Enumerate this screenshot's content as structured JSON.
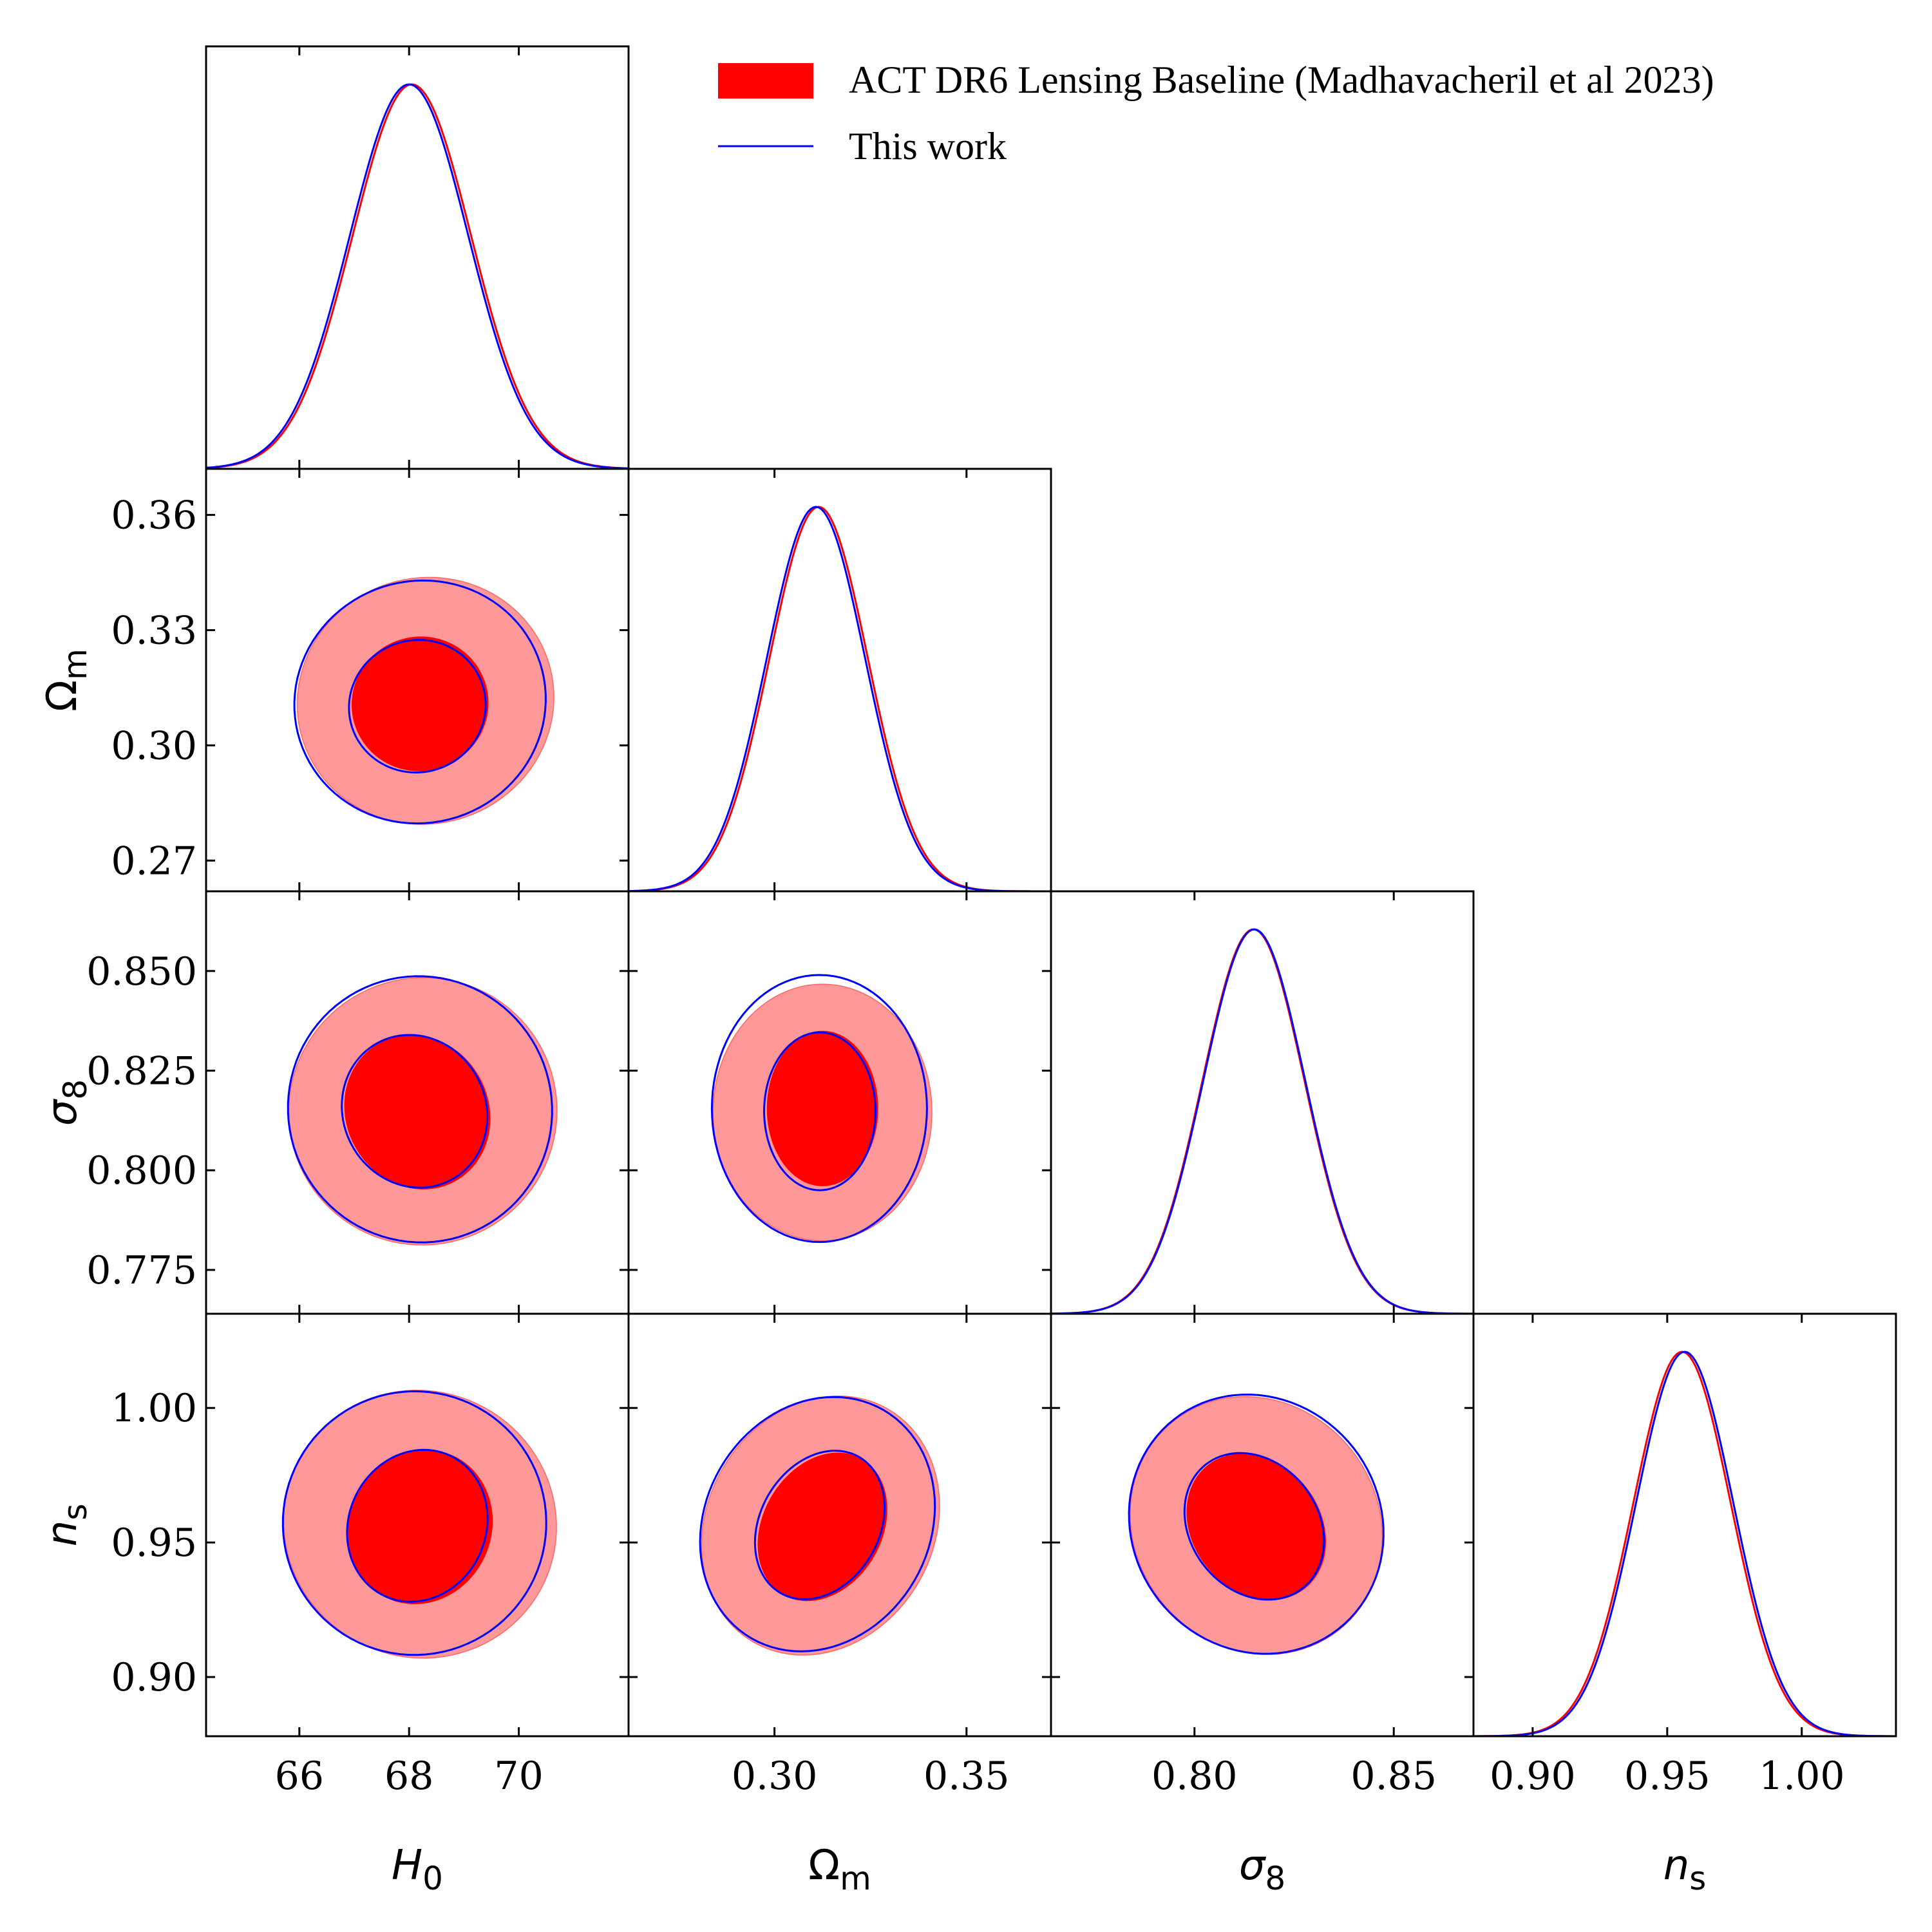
{
  "chart_data": {
    "type": "triangle-corner-plot",
    "params": [
      {
        "id": "H0",
        "label": "H",
        "sub": "0",
        "italic": true,
        "range": [
          64.3,
          72.0
        ],
        "ticks": [
          66,
          68,
          70
        ],
        "tick_labels": [
          "66",
          "68",
          "70"
        ],
        "mean": 68.0,
        "sigma": 1.08
      },
      {
        "id": "Om",
        "label": "Ω",
        "sub": "m",
        "italic": false,
        "range": [
          0.262,
          0.372
        ],
        "ticks": [
          0.27,
          0.3,
          0.33,
          0.36
        ],
        "tick_labels": [
          "0.27",
          "0.30",
          "0.33",
          "0.36"
        ],
        "tick_labels_x": [
          "0.30",
          "0.35"
        ],
        "ticks_x": [
          0.3,
          0.35
        ],
        "mean": 0.311,
        "sigma": 0.0128
      },
      {
        "id": "s8",
        "label": "σ",
        "sub": "8",
        "italic": true,
        "range": [
          0.764,
          0.87
        ],
        "ticks": [
          0.775,
          0.8,
          0.825,
          0.85
        ],
        "tick_labels": [
          "0.775",
          "0.800",
          "0.825",
          "0.850"
        ],
        "ticks_x": [
          0.8,
          0.85
        ],
        "tick_labels_x": [
          "0.80",
          "0.85"
        ],
        "mean": 0.815,
        "sigma": 0.0128
      },
      {
        "id": "ns",
        "label": "n",
        "sub": "s",
        "italic": true,
        "range": [
          0.878,
          1.035
        ],
        "ticks": [
          0.9,
          0.95,
          1.0
        ],
        "tick_labels": [
          "0.90",
          "0.95",
          "1.00"
        ],
        "mean": 0.956,
        "sigma": 0.0181
      }
    ],
    "series": [
      {
        "name": "ACT DR6 Lensing Baseline (Madhavacheril et al 2023)",
        "style": "filled",
        "color_inner": "#ff0000",
        "color_outer": "#ff9999",
        "line_color": "#ff0000",
        "peaks": [
          68.05,
          0.3115,
          0.8148,
          0.9555
        ]
      },
      {
        "name": "This work",
        "style": "line",
        "line_color": "#0000ff",
        "peaks": [
          68.0,
          0.3108,
          0.815,
          0.9565
        ]
      }
    ],
    "contours_2d": [
      {
        "pair": [
          "H0",
          "Om"
        ],
        "red_inner": {
          "cx": 68.2,
          "cy": 0.3108,
          "rx": 1.25,
          "ry": 0.0175,
          "rot": 20
        },
        "red_outer": {
          "cx": 68.3,
          "cy": 0.3116,
          "rx": 2.35,
          "ry": 0.032,
          "rot": 18
        },
        "blue_inner": {
          "cx": 68.15,
          "cy": 0.3102,
          "rx": 1.25,
          "ry": 0.0172,
          "rot": 18
        },
        "blue_outer": {
          "cx": 68.2,
          "cy": 0.3113,
          "rx": 2.3,
          "ry": 0.0315,
          "rot": 18
        }
      },
      {
        "pair": [
          "H0",
          "s8"
        ],
        "red_inner": {
          "cx": 68.15,
          "cy": 0.8146,
          "rx": 1.3,
          "ry": 0.0198,
          "rot": 28
        },
        "red_outer": {
          "cx": 68.25,
          "cy": 0.8148,
          "rx": 2.45,
          "ry": 0.0335,
          "rot": 28
        },
        "blue_inner": {
          "cx": 68.1,
          "cy": 0.8148,
          "rx": 1.3,
          "ry": 0.0195,
          "rot": 28
        },
        "blue_outer": {
          "cx": 68.2,
          "cy": 0.8153,
          "rx": 2.4,
          "ry": 0.0335,
          "rot": 28
        }
      },
      {
        "pair": [
          "H0",
          "ns"
        ],
        "red_inner": {
          "cx": 68.2,
          "cy": 0.9558,
          "rx": 1.3,
          "ry": 0.0292,
          "rot": -25
        },
        "red_outer": {
          "cx": 68.2,
          "cy": 0.9568,
          "rx": 2.5,
          "ry": 0.0495,
          "rot": -25
        },
        "blue_inner": {
          "cx": 68.15,
          "cy": 0.9562,
          "rx": 1.25,
          "ry": 0.0288,
          "rot": -25
        },
        "blue_outer": {
          "cx": 68.1,
          "cy": 0.9572,
          "rx": 2.4,
          "ry": 0.049,
          "rot": -25
        }
      },
      {
        "pair": [
          "Om",
          "s8"
        ],
        "red_inner": {
          "cx": 0.3125,
          "cy": 0.8155,
          "rx": 0.0145,
          "ry": 0.0195,
          "rot": 0
        },
        "red_outer": {
          "cx": 0.3125,
          "cy": 0.8145,
          "rx": 0.0285,
          "ry": 0.0322,
          "rot": 0
        },
        "blue_inner": {
          "cx": 0.3118,
          "cy": 0.8148,
          "rx": 0.0145,
          "ry": 0.0198,
          "rot": 0
        },
        "blue_outer": {
          "cx": 0.3117,
          "cy": 0.8155,
          "rx": 0.028,
          "ry": 0.0335,
          "rot": 0
        }
      },
      {
        "pair": [
          "Om",
          "ns"
        ],
        "red_inner": {
          "cx": 0.3125,
          "cy": 0.9558,
          "rx": 0.0155,
          "ry": 0.0292,
          "rot": -30
        },
        "red_outer": {
          "cx": 0.312,
          "cy": 0.9563,
          "rx": 0.0295,
          "ry": 0.05,
          "rot": -30
        },
        "blue_inner": {
          "cx": 0.3118,
          "cy": 0.9565,
          "rx": 0.0155,
          "ry": 0.0292,
          "rot": -30
        },
        "blue_outer": {
          "cx": 0.3112,
          "cy": 0.9568,
          "rx": 0.0292,
          "ry": 0.049,
          "rot": -30
        }
      },
      {
        "pair": [
          "s8",
          "ns"
        ],
        "red_inner": {
          "cx": 0.8155,
          "cy": 0.9558,
          "rx": 0.016,
          "ry": 0.0292,
          "rot": 38
        },
        "red_outer": {
          "cx": 0.8155,
          "cy": 0.9563,
          "rx": 0.0305,
          "ry": 0.0495,
          "rot": 38
        },
        "blue_inner": {
          "cx": 0.815,
          "cy": 0.956,
          "rx": 0.016,
          "ry": 0.0292,
          "rot": 38
        },
        "blue_outer": {
          "cx": 0.8155,
          "cy": 0.9568,
          "rx": 0.031,
          "ry": 0.0495,
          "rot": 38
        }
      }
    ],
    "legend": {
      "position": "top-right"
    }
  }
}
